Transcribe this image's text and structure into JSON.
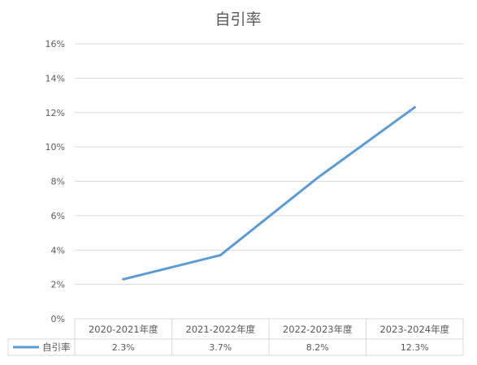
{
  "chart_data": {
    "type": "line",
    "title": "自引率",
    "categories": [
      "2020-2021年度",
      "2021-2022年度",
      "2022-2023年度",
      "2023-2024年度"
    ],
    "series": [
      {
        "name": "自引率",
        "values": [
          2.3,
          3.7,
          8.2,
          12.3
        ],
        "data_table_labels": [
          "2.3%",
          "3.7%",
          "8.2%",
          "12.3%"
        ],
        "color": "#5B9BD5"
      }
    ],
    "yticks": [
      "0%",
      "2%",
      "4%",
      "6%",
      "8%",
      "10%",
      "12%",
      "14%",
      "16%"
    ],
    "ylim": [
      0,
      16
    ],
    "grid": true,
    "data_table": true,
    "colors": {
      "gridline": "#D9D9D9",
      "text": "#595959",
      "series": "#5B9BD5"
    }
  }
}
